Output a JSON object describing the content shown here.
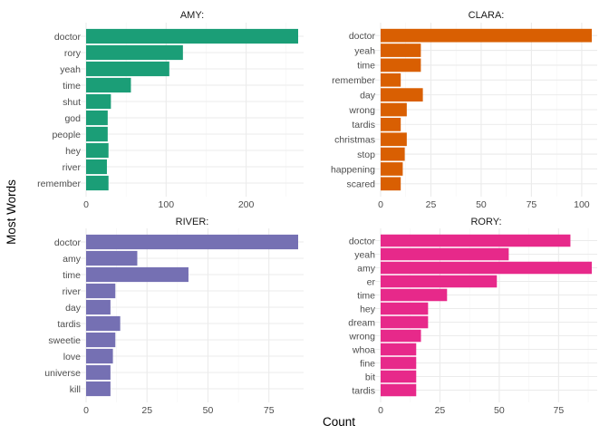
{
  "chart_data": {
    "type": "bar",
    "orientation": "horizontal",
    "xlabel": "Count",
    "ylabel": "Most Words",
    "grid": true,
    "legend": "none",
    "panels": [
      {
        "title": "AMY:",
        "color": "#1b9e77",
        "xlim": [
          0,
          265
        ],
        "xticks": [
          0,
          100,
          200
        ],
        "categories": [
          "doctor",
          "rory",
          "yeah",
          "time",
          "shut",
          "god",
          "people",
          "hey",
          "river",
          "remember"
        ],
        "values": [
          265,
          121,
          104,
          56,
          31,
          27,
          27,
          28,
          26,
          28
        ]
      },
      {
        "title": "CLARA:",
        "color": "#d95f02",
        "xlim": [
          0,
          105
        ],
        "xticks": [
          0,
          25,
          50,
          75,
          100
        ],
        "categories": [
          "doctor",
          "yeah",
          "time",
          "remember",
          "day",
          "wrong",
          "tardis",
          "christmas",
          "stop",
          "happening",
          "scared"
        ],
        "values": [
          105,
          20,
          20,
          10,
          21,
          13,
          10,
          13,
          12,
          11,
          10
        ]
      },
      {
        "title": "RIVER:",
        "color": "#7570b3",
        "xlim": [
          0,
          87
        ],
        "xticks": [
          0,
          25,
          50,
          75
        ],
        "categories": [
          "doctor",
          "amy",
          "time",
          "river",
          "day",
          "tardis",
          "sweetie",
          "love",
          "universe",
          "kill"
        ],
        "values": [
          87,
          21,
          42,
          12,
          10,
          14,
          12,
          11,
          10,
          10
        ]
      },
      {
        "title": "RORY:",
        "color": "#e7298a",
        "xlim": [
          0,
          89
        ],
        "xticks": [
          0,
          25,
          50,
          75
        ],
        "categories": [
          "doctor",
          "yeah",
          "amy",
          "er",
          "time",
          "hey",
          "dream",
          "wrong",
          "whoa",
          "fine",
          "bit",
          "tardis"
        ],
        "values": [
          80,
          54,
          89,
          49,
          28,
          20,
          20,
          17,
          15,
          15,
          15,
          15
        ]
      }
    ]
  }
}
